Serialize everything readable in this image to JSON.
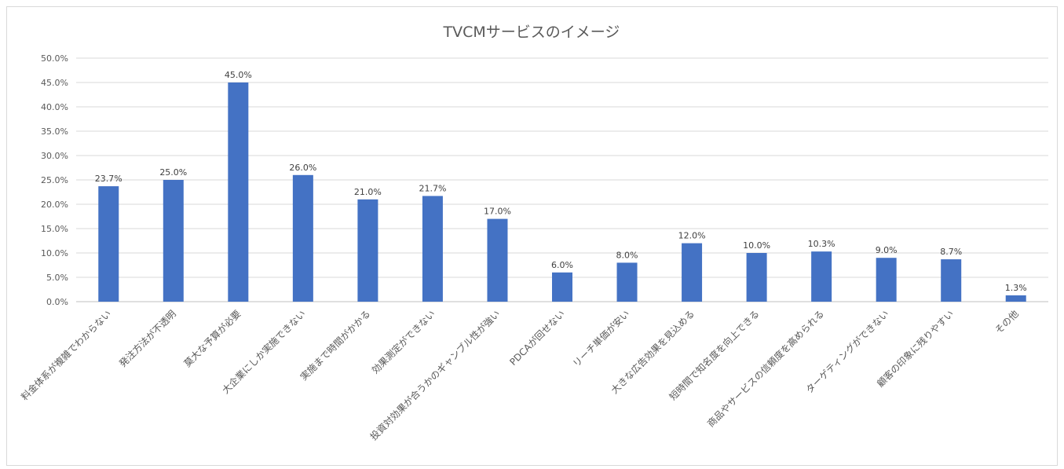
{
  "chart_data": {
    "type": "bar",
    "title": "TVCMサービスのイメージ",
    "xlabel": "",
    "ylabel": "",
    "ylim": [
      0,
      50
    ],
    "yticks": [
      "0.0%",
      "5.0%",
      "10.0%",
      "15.0%",
      "20.0%",
      "25.0%",
      "30.0%",
      "35.0%",
      "40.0%",
      "45.0%",
      "50.0%"
    ],
    "grid": true,
    "legend": "none",
    "bar_color": "#4472c4",
    "categories": [
      "料金体系が複雑でわからない",
      "発注方法が不透明",
      "莫大な予算が必要",
      "大企業にしか実施できない",
      "実施まで時間がかかる",
      "効果測定ができない",
      "投資対効果が合うかのギャンブル性が強い",
      "PDCAが回せない",
      "リーチ単価が安い",
      "大きな広告効果を見込める",
      "短時間で知名度を向上できる",
      "商品やサービスの信頼度を高められる",
      "ターゲティングができない",
      "顧客の印象に残りやすい",
      "その他"
    ],
    "values": [
      23.7,
      25.0,
      45.0,
      26.0,
      21.0,
      21.7,
      17.0,
      6.0,
      8.0,
      12.0,
      10.0,
      10.3,
      9.0,
      8.7,
      1.3
    ],
    "data_labels": [
      "23.7%",
      "25.0%",
      "45.0%",
      "26.0%",
      "21.0%",
      "21.7%",
      "17.0%",
      "6.0%",
      "8.0%",
      "12.0%",
      "10.0%",
      "10.3%",
      "9.0%",
      "8.7%",
      "1.3%"
    ]
  }
}
